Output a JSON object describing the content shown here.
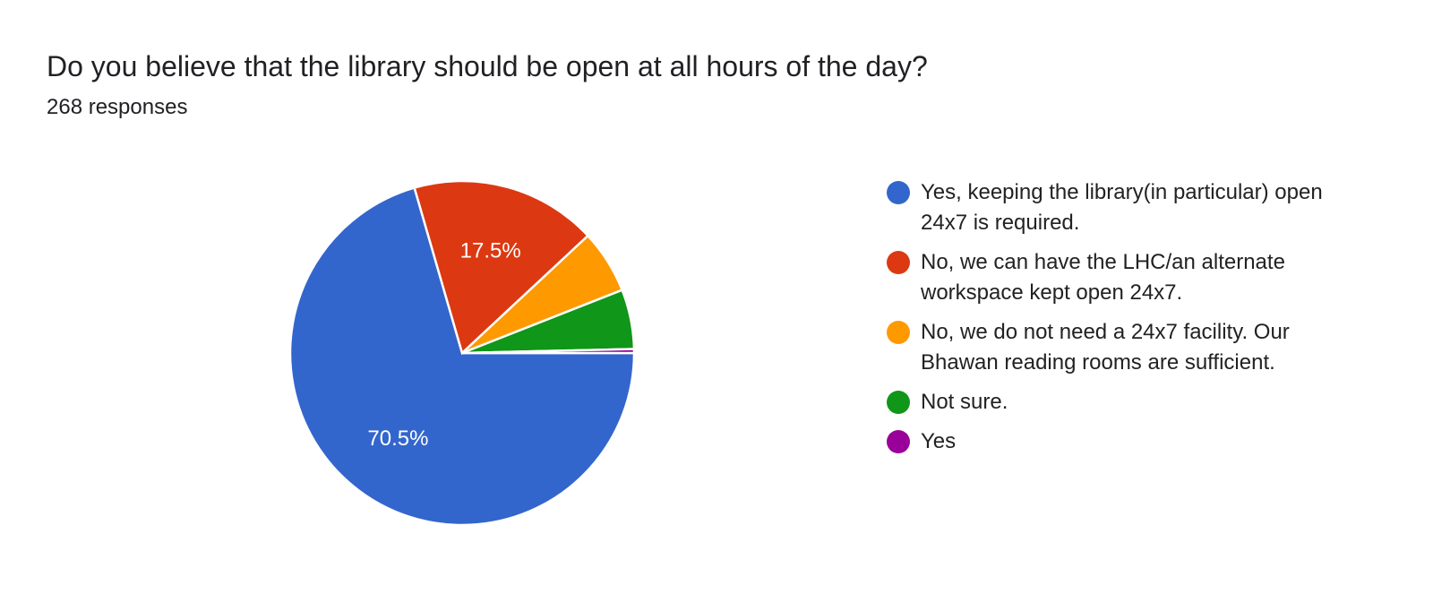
{
  "header": {
    "title": "Do you believe that the library should be open at all hours of the day?",
    "responses": "268 responses"
  },
  "chart_data": {
    "type": "pie",
    "title": "Do you believe that the library should be open at all hours of the day?",
    "total": 268,
    "legend_position": "right",
    "start_angle": "3 o'clock, clockwise",
    "slices": [
      {
        "label": "Yes, keeping the library(in particular) open 24x7 is required.",
        "value": 189,
        "percent_label": "70.5%",
        "color": "#3366cc"
      },
      {
        "label": "No, we can have the LHC/an alternate workspace kept open 24x7.",
        "value": 47,
        "percent_label": "17.5%",
        "color": "#dc3912"
      },
      {
        "label": "No, we do not need a 24x7 facility. Our Bhawan reading rooms are sufficient.",
        "value": 16,
        "percent_label": "",
        "color": "#ff9900"
      },
      {
        "label": "Not sure.",
        "value": 15,
        "percent_label": "",
        "color": "#109618"
      },
      {
        "label": "Yes",
        "value": 1,
        "percent_label": "",
        "color": "#990099"
      }
    ]
  }
}
